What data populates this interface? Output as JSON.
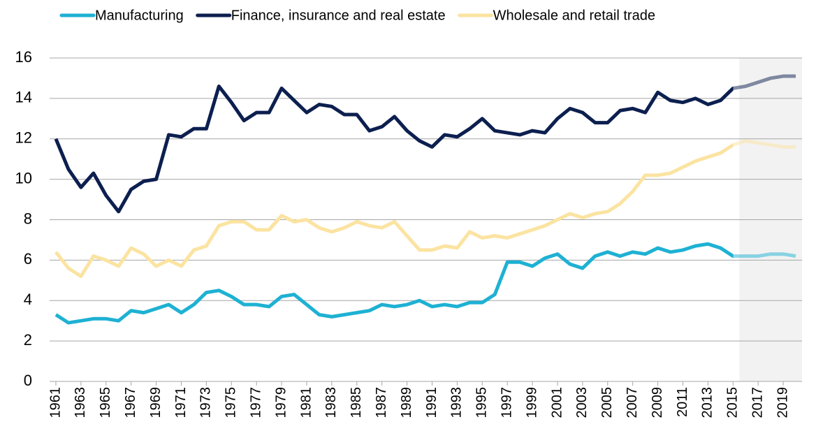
{
  "chart_data": {
    "type": "line",
    "x": [
      1961,
      1962,
      1963,
      1964,
      1965,
      1966,
      1967,
      1968,
      1969,
      1970,
      1971,
      1972,
      1973,
      1974,
      1975,
      1976,
      1977,
      1978,
      1979,
      1980,
      1981,
      1982,
      1983,
      1984,
      1985,
      1986,
      1987,
      1988,
      1989,
      1990,
      1991,
      1992,
      1993,
      1994,
      1995,
      1996,
      1997,
      1998,
      1999,
      2000,
      2001,
      2002,
      2003,
      2004,
      2005,
      2006,
      2007,
      2008,
      2009,
      2010,
      2011,
      2012,
      2013,
      2014,
      2015,
      2016,
      2017,
      2018,
      2019,
      2020
    ],
    "xlim": [
      1960.5,
      2020.5
    ],
    "xticks": [
      1961,
      1963,
      1965,
      1967,
      1969,
      1971,
      1973,
      1975,
      1977,
      1979,
      1981,
      1983,
      1985,
      1987,
      1989,
      1991,
      1993,
      1995,
      1997,
      1999,
      2001,
      2003,
      2005,
      2007,
      2009,
      2011,
      2013,
      2015,
      2017,
      2019
    ],
    "ylim": [
      0,
      16
    ],
    "yticks": [
      0,
      2,
      4,
      6,
      8,
      10,
      12,
      14,
      16
    ],
    "grid": true,
    "legend": "top",
    "forecast_from": 2015,
    "series": [
      {
        "name": "Manufacturing",
        "color": "#1eb1d3",
        "values": [
          3.3,
          2.9,
          3.0,
          3.1,
          3.1,
          3.0,
          3.5,
          3.4,
          3.6,
          3.8,
          3.4,
          3.8,
          4.4,
          4.5,
          4.2,
          3.8,
          3.8,
          3.7,
          4.2,
          4.3,
          3.8,
          3.3,
          3.2,
          3.3,
          3.4,
          3.5,
          3.8,
          3.7,
          3.8,
          4.0,
          3.7,
          3.8,
          3.7,
          3.9,
          3.9,
          4.3,
          5.9,
          5.9,
          5.7,
          6.1,
          6.3,
          5.8,
          5.6,
          6.2,
          6.4,
          6.2,
          6.4,
          6.3,
          6.6,
          6.4,
          6.5,
          6.7,
          6.8,
          6.6,
          6.2,
          6.2,
          6.2,
          6.3,
          6.3,
          6.2
        ]
      },
      {
        "name": "Finance, insurance and real estate",
        "color": "#0c1f4f",
        "values": [
          12.0,
          10.5,
          9.6,
          10.3,
          9.2,
          8.4,
          9.5,
          9.9,
          10.0,
          12.2,
          12.1,
          12.5,
          12.5,
          14.6,
          13.8,
          12.9,
          13.3,
          13.3,
          14.5,
          13.9,
          13.3,
          13.7,
          13.6,
          13.2,
          13.2,
          12.4,
          12.6,
          13.1,
          12.4,
          11.9,
          11.6,
          12.2,
          12.1,
          12.5,
          13.0,
          12.4,
          12.3,
          12.2,
          12.4,
          12.3,
          13.0,
          13.5,
          13.3,
          12.8,
          12.8,
          13.4,
          13.5,
          13.3,
          14.3,
          13.9,
          13.8,
          14.0,
          13.7,
          13.9,
          14.5,
          14.6,
          14.8,
          15.0,
          15.1,
          15.1
        ]
      },
      {
        "name": "Wholesale and retail trade",
        "color": "#fbe3a1",
        "values": [
          6.4,
          5.6,
          5.2,
          6.2,
          6.0,
          5.7,
          6.6,
          6.3,
          5.7,
          6.0,
          5.7,
          6.5,
          6.7,
          7.7,
          7.9,
          7.9,
          7.5,
          7.5,
          8.2,
          7.9,
          8.0,
          7.6,
          7.4,
          7.6,
          7.9,
          7.7,
          7.6,
          7.9,
          7.2,
          6.5,
          6.5,
          6.7,
          6.6,
          7.4,
          7.1,
          7.2,
          7.1,
          7.3,
          7.5,
          7.7,
          8.0,
          8.3,
          8.1,
          8.3,
          8.4,
          8.8,
          9.4,
          10.2,
          10.2,
          10.3,
          10.6,
          10.9,
          11.1,
          11.3,
          11.7,
          11.9,
          11.8,
          11.7,
          11.6,
          11.6
        ]
      }
    ]
  }
}
